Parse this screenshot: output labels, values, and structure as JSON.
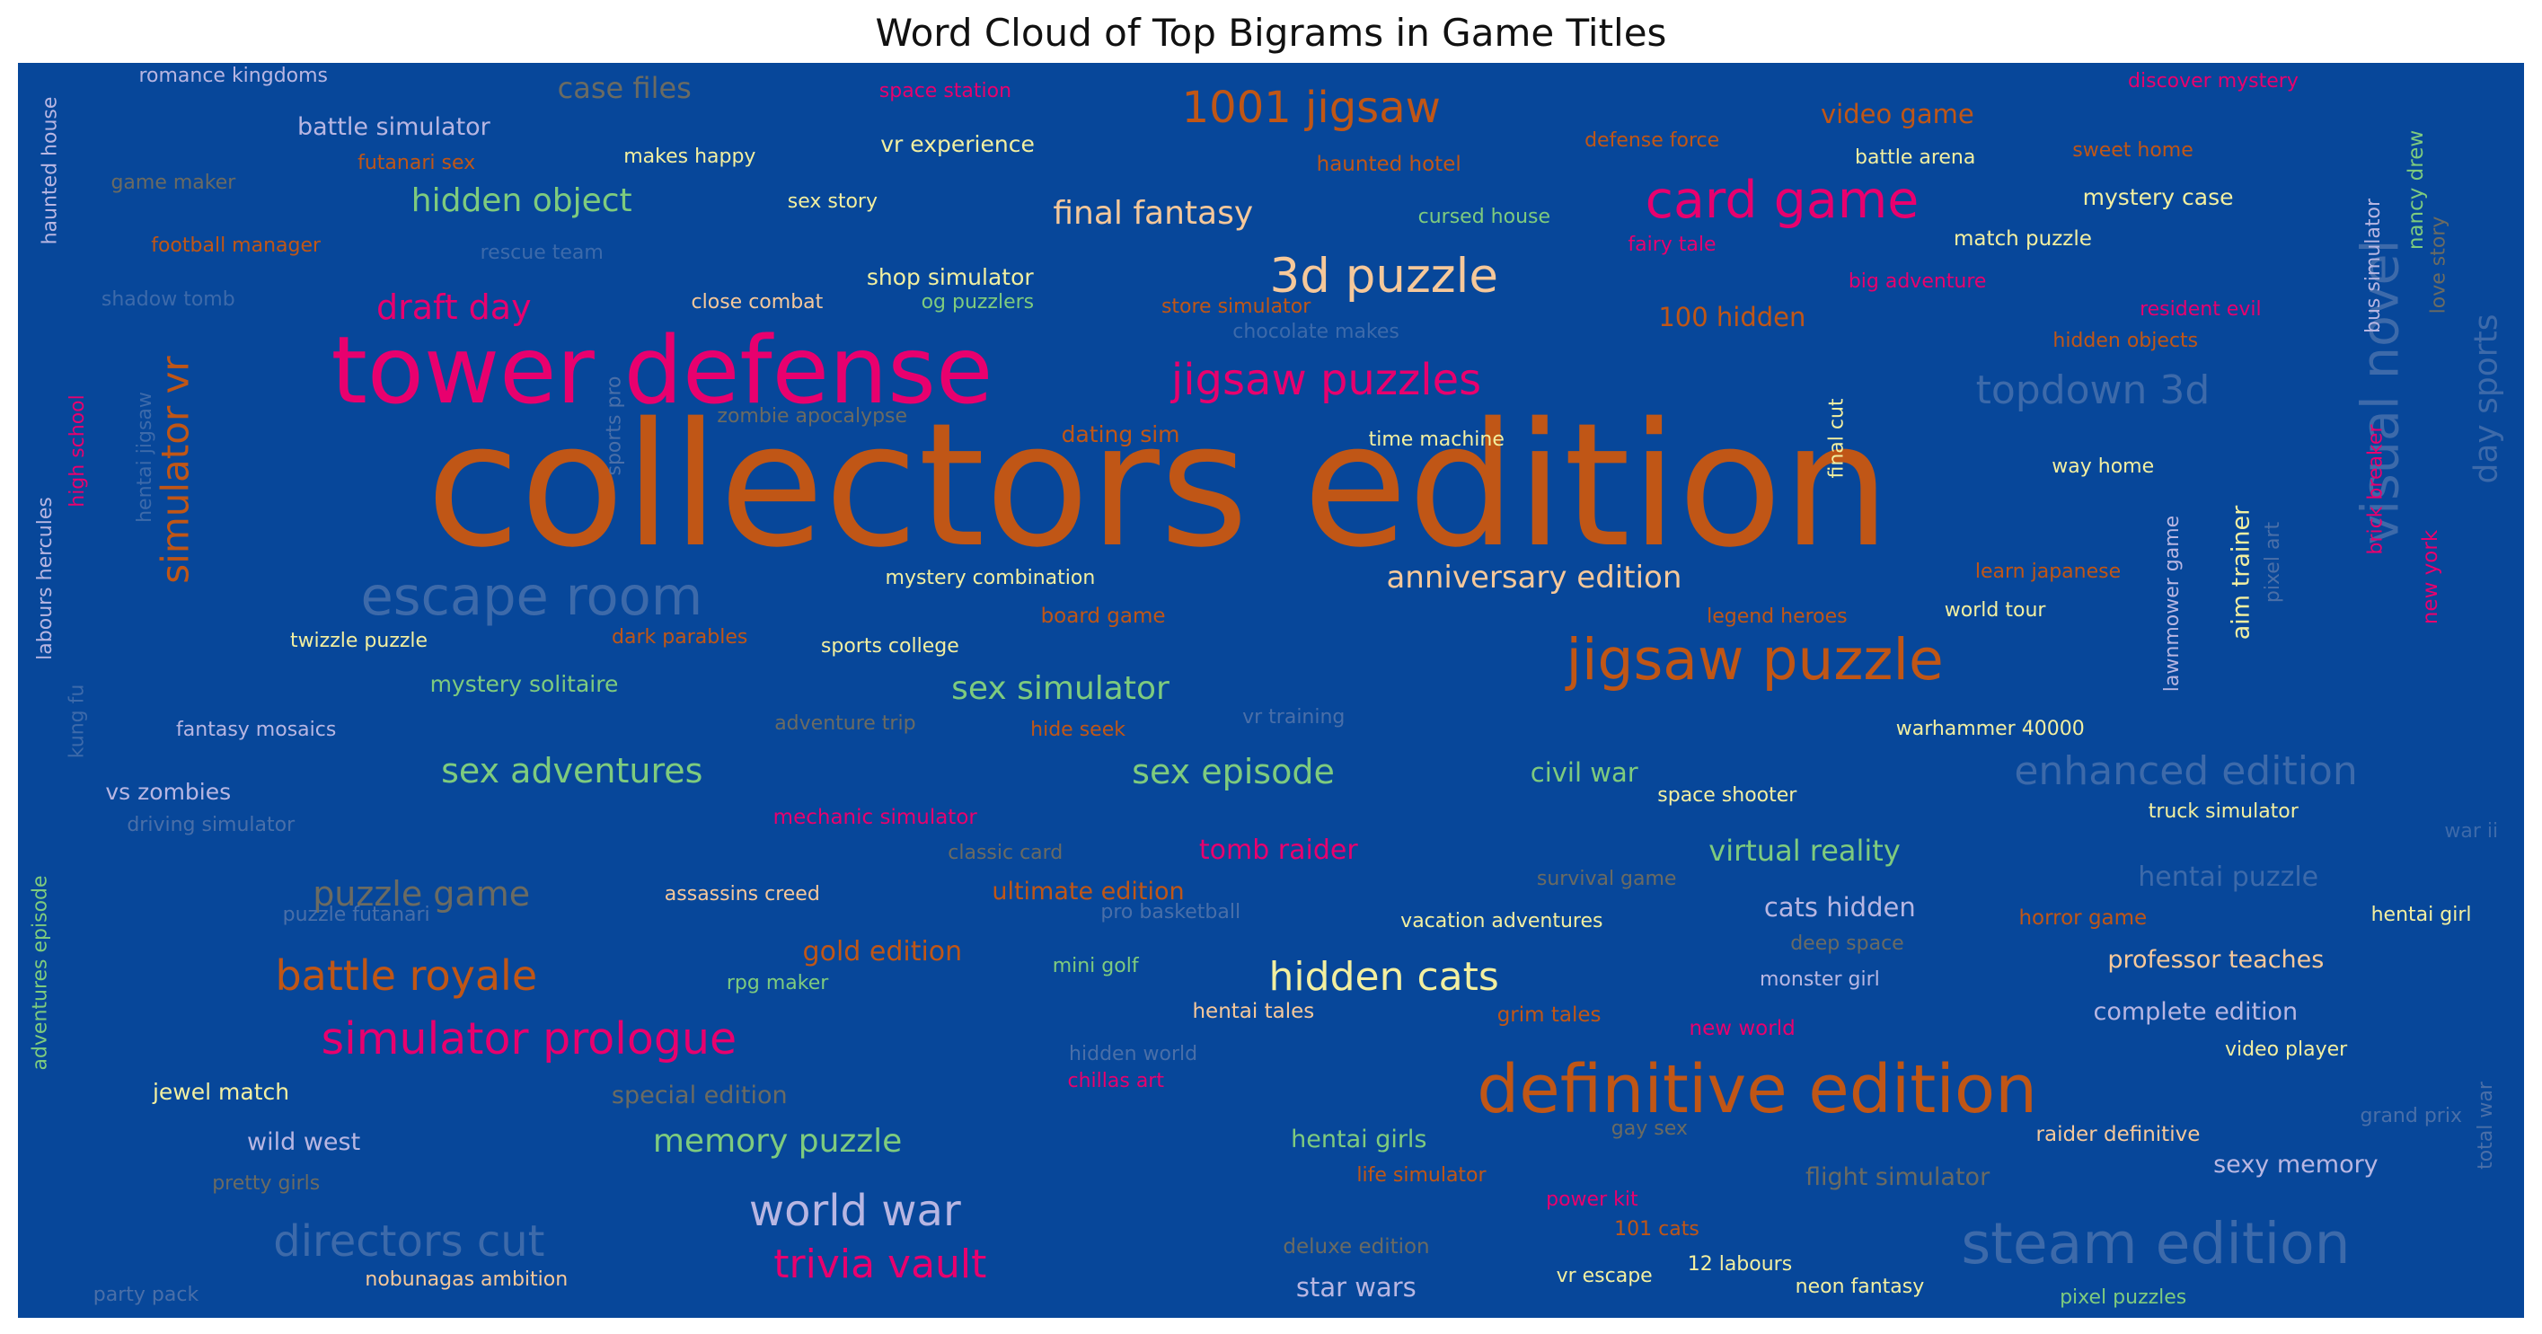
{
  "chart_data": {
    "type": "wordcloud",
    "title": "Word Cloud of Top Bigrams in Game Titles",
    "background": "#07479a",
    "palette": {
      "p": "#e8006e",
      "o": "#c05616",
      "s": "#3d6aaa",
      "g": "#7ecb7e",
      "y": "#f2efa0",
      "a": "#f6c89a",
      "l": "#b8b6e2",
      "m": "#6b6b62",
      "f": "#4a6fa8"
    },
    "words": [
      [
        "collectors edition",
        1,
        0.455,
        0.337,
        "o",
        0
      ],
      [
        "tower defense",
        0.54,
        0.257,
        0.246,
        "p",
        0
      ],
      [
        "definitive edition",
        0.39,
        0.694,
        0.818,
        "o",
        0
      ],
      [
        "jigsaw puzzle",
        0.33,
        0.693,
        0.476,
        "o",
        0
      ],
      [
        "steam edition",
        0.33,
        0.853,
        0.941,
        "s",
        0
      ],
      [
        "escape room",
        0.31,
        0.205,
        0.425,
        "s",
        0
      ],
      [
        "card game",
        0.3,
        0.704,
        0.11,
        "p",
        0
      ],
      [
        "visual novel",
        0.3,
        0.943,
        0.262,
        "s",
        1
      ],
      [
        "3d puzzle",
        0.28,
        0.545,
        0.17,
        "a",
        0
      ],
      [
        "simulator prologue",
        0.26,
        0.204,
        0.778,
        "p",
        0
      ],
      [
        "world war",
        0.25,
        0.334,
        0.915,
        "l",
        0
      ],
      [
        "jigsaw puzzles",
        0.25,
        0.522,
        0.253,
        "p",
        0
      ],
      [
        "directors cut",
        0.25,
        0.156,
        0.939,
        "s",
        0
      ],
      [
        "1001 jigsaw",
        0.25,
        0.516,
        0.036,
        "o",
        0
      ],
      [
        "battle royale",
        0.24,
        0.155,
        0.727,
        "o",
        0
      ],
      [
        "trivia vault",
        0.23,
        0.344,
        0.958,
        "p",
        0
      ],
      [
        "hidden cats",
        0.23,
        0.545,
        0.729,
        "y",
        0
      ],
      [
        "enhanced edition",
        0.23,
        0.865,
        0.565,
        "s",
        0
      ],
      [
        "topdown 3d",
        0.23,
        0.828,
        0.261,
        "s",
        0
      ],
      [
        "simulator vr",
        0.22,
        0.063,
        0.324,
        "o",
        1
      ],
      [
        "sex adventures",
        0.2,
        0.221,
        0.564,
        "g",
        0
      ],
      [
        "sex episode",
        0.2,
        0.485,
        0.565,
        "g",
        0
      ],
      [
        "puzzle game",
        0.2,
        0.161,
        0.662,
        "m",
        0
      ],
      [
        "draft day",
        0.2,
        0.174,
        0.195,
        "p",
        0
      ],
      [
        "hidden object",
        0.19,
        0.201,
        0.11,
        "g",
        0
      ],
      [
        "final fantasy",
        0.19,
        0.453,
        0.12,
        "a",
        0
      ],
      [
        "day sports",
        0.19,
        0.985,
        0.268,
        "s",
        1
      ],
      [
        "memory puzzle",
        0.19,
        0.303,
        0.86,
        "g",
        0
      ],
      [
        "sex simulator",
        0.19,
        0.416,
        0.499,
        "g",
        0
      ],
      [
        "anniversary edition",
        0.18,
        0.605,
        0.41,
        "a",
        0
      ],
      [
        "case files",
        0.17,
        0.242,
        0.02,
        "m",
        0
      ],
      [
        "virtual reality",
        0.17,
        0.713,
        0.628,
        "g",
        0
      ],
      [
        "tomb raider",
        0.16,
        0.503,
        0.628,
        "p",
        0
      ],
      [
        "civil war",
        0.15,
        0.625,
        0.566,
        "g",
        0
      ],
      [
        "hentai puzzle",
        0.16,
        0.882,
        0.649,
        "s",
        0
      ],
      [
        "gold edition",
        0.16,
        0.345,
        0.709,
        "o",
        0
      ],
      [
        "cats hidden",
        0.15,
        0.727,
        0.673,
        "l",
        0
      ],
      [
        "100 hidden",
        0.15,
        0.684,
        0.203,
        "o",
        0
      ],
      [
        "star wars",
        0.15,
        0.534,
        0.976,
        "l",
        0
      ],
      [
        "video game",
        0.15,
        0.75,
        0.041,
        "o",
        0
      ],
      [
        "ultimate edition",
        0.14,
        0.427,
        0.66,
        "o",
        0
      ],
      [
        "hentai girls",
        0.14,
        0.535,
        0.858,
        "g",
        0
      ],
      [
        "wild west",
        0.14,
        0.114,
        0.86,
        "l",
        0
      ],
      [
        "complete edition",
        0.14,
        0.869,
        0.756,
        "l",
        0
      ],
      [
        "professor teaches",
        0.14,
        0.877,
        0.715,
        "a",
        0
      ],
      [
        "sexy memory",
        0.14,
        0.909,
        0.878,
        "l",
        0
      ],
      [
        "special edition",
        0.14,
        0.272,
        0.823,
        "m",
        0
      ],
      [
        "battle simulator",
        0.14,
        0.15,
        0.051,
        "l",
        0
      ],
      [
        "aim trainer",
        0.14,
        0.887,
        0.406,
        "y",
        1
      ],
      [
        "flight simulator",
        0.14,
        0.75,
        0.888,
        "m",
        0
      ],
      [
        "mystery case",
        0.13,
        0.854,
        0.107,
        "y",
        0
      ],
      [
        "jewel match",
        0.13,
        0.081,
        0.82,
        "y",
        0
      ],
      [
        "vr experience",
        0.13,
        0.375,
        0.065,
        "y",
        0
      ],
      [
        "shop simulator",
        0.13,
        0.372,
        0.171,
        "y",
        0
      ],
      [
        "dating sim",
        0.13,
        0.44,
        0.296,
        "o",
        0
      ],
      [
        "mystery solitaire",
        0.13,
        0.202,
        0.495,
        "g",
        0
      ],
      [
        "vs zombies",
        0.13,
        0.06,
        0.581,
        "l",
        0
      ],
      [
        "board game",
        0.12,
        0.433,
        0.441,
        "o",
        0
      ],
      [
        "mechanic simulator",
        0.12,
        0.342,
        0.602,
        "p",
        0
      ],
      [
        "new york",
        0.12,
        0.963,
        0.41,
        "p",
        1
      ],
      [
        "raider definitive",
        0.12,
        0.838,
        0.854,
        "a",
        0
      ],
      [
        "haunted hotel",
        0.12,
        0.547,
        0.081,
        "o",
        0
      ],
      [
        "hentai tales",
        0.12,
        0.493,
        0.756,
        "a",
        0
      ],
      [
        "grim tales",
        0.12,
        0.611,
        0.759,
        "o",
        0
      ],
      [
        "new world",
        0.12,
        0.688,
        0.77,
        "p",
        0
      ],
      [
        "match puzzle",
        0.12,
        0.8,
        0.141,
        "y",
        0
      ],
      [
        "horror game",
        0.12,
        0.824,
        0.682,
        "o",
        0
      ],
      [
        "nancy drew",
        0.12,
        0.957,
        0.101,
        "g",
        1
      ],
      [
        "deluxe edition",
        0.12,
        0.534,
        0.944,
        "m",
        0
      ],
      [
        "pixel puzzles",
        0.11,
        0.84,
        0.984,
        "g",
        0
      ],
      [
        "warhammer 40000",
        0.11,
        0.787,
        0.531,
        "y",
        0
      ],
      [
        "hidden objects",
        0.11,
        0.841,
        0.222,
        "o",
        0
      ],
      [
        "big adventure",
        0.11,
        0.758,
        0.175,
        "p",
        0
      ],
      [
        "world tour",
        0.11,
        0.789,
        0.437,
        "y",
        0
      ],
      [
        "vacation adventures",
        0.11,
        0.592,
        0.684,
        "y",
        0
      ],
      [
        "assassins creed",
        0.11,
        0.289,
        0.663,
        "a",
        0
      ],
      [
        "chillas art",
        0.11,
        0.438,
        0.812,
        "p",
        0
      ],
      [
        "monster girl",
        0.1,
        0.719,
        0.731,
        "l",
        0
      ],
      [
        "life simulator",
        0.1,
        0.56,
        0.887,
        "o",
        0
      ],
      [
        "power kit",
        0.1,
        0.628,
        0.906,
        "p",
        0
      ],
      [
        "12 labours",
        0.1,
        0.687,
        0.958,
        "y",
        0
      ],
      [
        "nobunagas ambition",
        0.1,
        0.179,
        0.97,
        "a",
        0
      ],
      [
        "pretty girls",
        0.1,
        0.099,
        0.893,
        "m",
        0
      ],
      [
        "sex story",
        0.1,
        0.325,
        0.111,
        "y",
        0
      ],
      [
        "space station",
        0.1,
        0.37,
        0.023,
        "p",
        0
      ],
      [
        "hide seek",
        0.1,
        0.423,
        0.532,
        "o",
        0
      ],
      [
        "romance kingdoms",
        0.09,
        0.086,
        0.011,
        "l",
        0
      ],
      [
        "fantasy mosaics",
        0.09,
        0.095,
        0.532,
        "l",
        0
      ],
      [
        "adventures episode",
        0.09,
        0.009,
        0.725,
        "g",
        1
      ],
      [
        "labours hercules",
        0.09,
        0.011,
        0.411,
        "l",
        1
      ],
      [
        "high school",
        0.09,
        0.024,
        0.309,
        "p",
        1
      ],
      [
        "kung fu",
        0.09,
        0.024,
        0.525,
        "s",
        1
      ],
      [
        "haunted house",
        0.08,
        0.013,
        0.086,
        "l",
        1
      ],
      [
        "war ii",
        0.1,
        0.979,
        0.613,
        "s",
        0
      ],
      [
        "truck simulator",
        0.09,
        0.88,
        0.597,
        "y",
        0
      ],
      [
        "battle arena",
        0.09,
        0.757,
        0.076,
        "y",
        0
      ],
      [
        "sweet home",
        0.09,
        0.844,
        0.07,
        "o",
        0
      ],
      [
        "discover mystery",
        0.08,
        0.876,
        0.015,
        "p",
        0
      ],
      [
        "defense force",
        0.09,
        0.652,
        0.062,
        "o",
        0
      ],
      [
        "makes happy",
        0.08,
        0.268,
        0.075,
        "y",
        0
      ],
      [
        "game maker",
        0.09,
        0.062,
        0.096,
        "m",
        0
      ],
      [
        "futanari sex",
        0.09,
        0.159,
        0.08,
        "o",
        0
      ],
      [
        "football manager",
        0.08,
        0.087,
        0.146,
        "o",
        0
      ],
      [
        "rescue team",
        0.1,
        0.209,
        0.152,
        "s",
        0
      ],
      [
        "shadow tomb",
        0.1,
        0.06,
        0.189,
        "s",
        0
      ],
      [
        "close combat",
        0.08,
        0.295,
        0.191,
        "a",
        0
      ],
      [
        "og puzzlers",
        0.08,
        0.383,
        0.191,
        "g",
        0
      ],
      [
        "store simulator",
        0.08,
        0.486,
        0.195,
        "o",
        0
      ],
      [
        "chocolate makes",
        0.08,
        0.518,
        0.215,
        "s",
        0
      ],
      [
        "cursed house",
        0.08,
        0.585,
        0.123,
        "g",
        0
      ],
      [
        "fairy tale",
        0.07,
        0.66,
        0.145,
        "p",
        0
      ],
      [
        "resident evil",
        0.07,
        0.871,
        0.197,
        "p",
        0
      ],
      [
        "zombie apocalypse",
        0.07,
        0.317,
        0.282,
        "m",
        0
      ],
      [
        "time machine",
        0.08,
        0.566,
        0.301,
        "y",
        0
      ],
      [
        "way home",
        0.08,
        0.832,
        0.322,
        "y",
        0
      ],
      [
        "final cut",
        0.08,
        0.726,
        0.299,
        "y",
        1
      ],
      [
        "sports pro",
        0.07,
        0.238,
        0.289,
        "f",
        1
      ],
      [
        "hentai jigsaw",
        0.06,
        0.051,
        0.314,
        "s",
        1
      ],
      [
        "mystery combination",
        0.07,
        0.388,
        0.411,
        "y",
        0
      ],
      [
        "learn japanese",
        0.07,
        0.81,
        0.406,
        "o",
        0
      ],
      [
        "legend heroes",
        0.07,
        0.702,
        0.442,
        "o",
        0
      ],
      [
        "twizzle puzzle",
        0.07,
        0.136,
        0.461,
        "y",
        0
      ],
      [
        "dark parables",
        0.08,
        0.264,
        0.458,
        "o",
        0
      ],
      [
        "sports college",
        0.08,
        0.348,
        0.465,
        "y",
        0
      ],
      [
        "adventure trip",
        0.07,
        0.33,
        0.527,
        "m",
        0
      ],
      [
        "vr training",
        0.07,
        0.509,
        0.522,
        "f",
        0
      ],
      [
        "space shooter",
        0.07,
        0.682,
        0.584,
        "y",
        0
      ],
      [
        "driving simulator",
        0.08,
        0.077,
        0.608,
        "f",
        0
      ],
      [
        "classic card",
        0.08,
        0.394,
        0.63,
        "m",
        0
      ],
      [
        "survival game",
        0.07,
        0.634,
        0.651,
        "m",
        0
      ],
      [
        "puzzle futanari",
        0.07,
        0.135,
        0.679,
        "f",
        0
      ],
      [
        "pro basketball",
        0.08,
        0.46,
        0.677,
        "f",
        0
      ],
      [
        "deep space",
        0.08,
        0.73,
        0.702,
        "m",
        0
      ],
      [
        "rpg maker",
        0.07,
        0.303,
        0.734,
        "g",
        0
      ],
      [
        "mini golf",
        0.07,
        0.43,
        0.72,
        "g",
        0
      ],
      [
        "hidden world",
        0.07,
        0.445,
        0.79,
        "f",
        0
      ],
      [
        "hentai girl",
        0.07,
        0.959,
        0.679,
        "y",
        0
      ],
      [
        "video player",
        0.07,
        0.905,
        0.787,
        "y",
        0
      ],
      [
        "gay sex",
        0.09,
        0.651,
        0.85,
        "m",
        0
      ],
      [
        "grand prix",
        0.07,
        0.955,
        0.84,
        "f",
        0
      ],
      [
        "total war",
        0.07,
        0.985,
        0.847,
        "f",
        1
      ],
      [
        "101 cats",
        0.07,
        0.654,
        0.93,
        "o",
        0
      ],
      [
        "vr escape",
        0.07,
        0.633,
        0.967,
        "y",
        0
      ],
      [
        "neon fantasy",
        0.07,
        0.735,
        0.976,
        "y",
        0
      ],
      [
        "party pack",
        0.07,
        0.051,
        0.982,
        "f",
        0
      ],
      [
        "lawnmower game",
        0.07,
        0.86,
        0.431,
        "l",
        1
      ],
      [
        "brick breaker",
        0.09,
        0.941,
        0.34,
        "p",
        1
      ],
      [
        "bus simulator",
        0.08,
        0.94,
        0.162,
        "l",
        1
      ],
      [
        "love story",
        0.08,
        0.966,
        0.161,
        "m",
        1
      ],
      [
        "pixel art",
        0.07,
        0.9,
        0.398,
        "f",
        1
      ]
    ]
  }
}
